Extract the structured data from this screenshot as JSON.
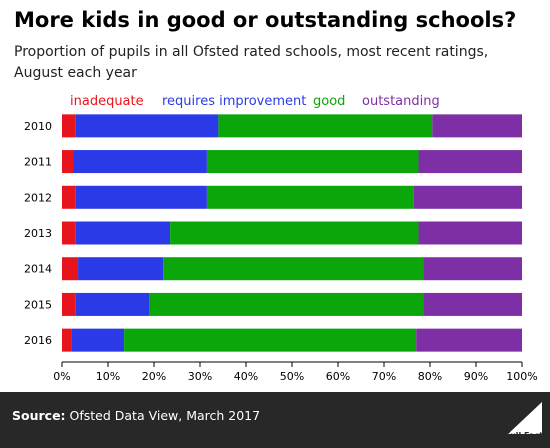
{
  "title": "More kids in good or outstanding schools?",
  "subtitle_line1": "Proportion of pupils in all Ofsted rated schools, most recent ratings,",
  "subtitle_line2": "August each year",
  "source_label": "Source:",
  "source_text": " Ofsted Data View, March 2017",
  "logo_text": "Full Fact",
  "colors": {
    "inadequate": "#e8141c",
    "requires_improvement": "#2a3ae6",
    "good": "#0aa60a",
    "outstanding": "#7e2fa5",
    "footer_bg": "#282828"
  },
  "chart_data": {
    "type": "bar",
    "orientation": "horizontal",
    "stacked": true,
    "categories": [
      "2010",
      "2011",
      "2012",
      "2013",
      "2014",
      "2015",
      "2016"
    ],
    "series": [
      {
        "name": "inadequate",
        "color": "#e8141c",
        "values": [
          3,
          2.5,
          3,
          3,
          3.5,
          3,
          2
        ]
      },
      {
        "name": "requires improvement",
        "color": "#2a3ae6",
        "values": [
          31,
          29,
          28.5,
          20.5,
          18.5,
          16,
          11.5
        ]
      },
      {
        "name": "good",
        "color": "#0aa60a",
        "values": [
          46.5,
          46,
          45,
          54,
          56.5,
          59.5,
          63.5
        ]
      },
      {
        "name": "outstanding",
        "color": "#7e2fa5",
        "values": [
          19.5,
          22.5,
          23.5,
          22.5,
          21.5,
          21.5,
          23
        ]
      }
    ],
    "xlim": [
      0,
      100
    ],
    "xticks": [
      "0%",
      "10%",
      "20%",
      "30%",
      "40%",
      "50%",
      "60%",
      "70%",
      "80%",
      "90%",
      "100%"
    ],
    "legend_position": "top",
    "grid": false
  }
}
